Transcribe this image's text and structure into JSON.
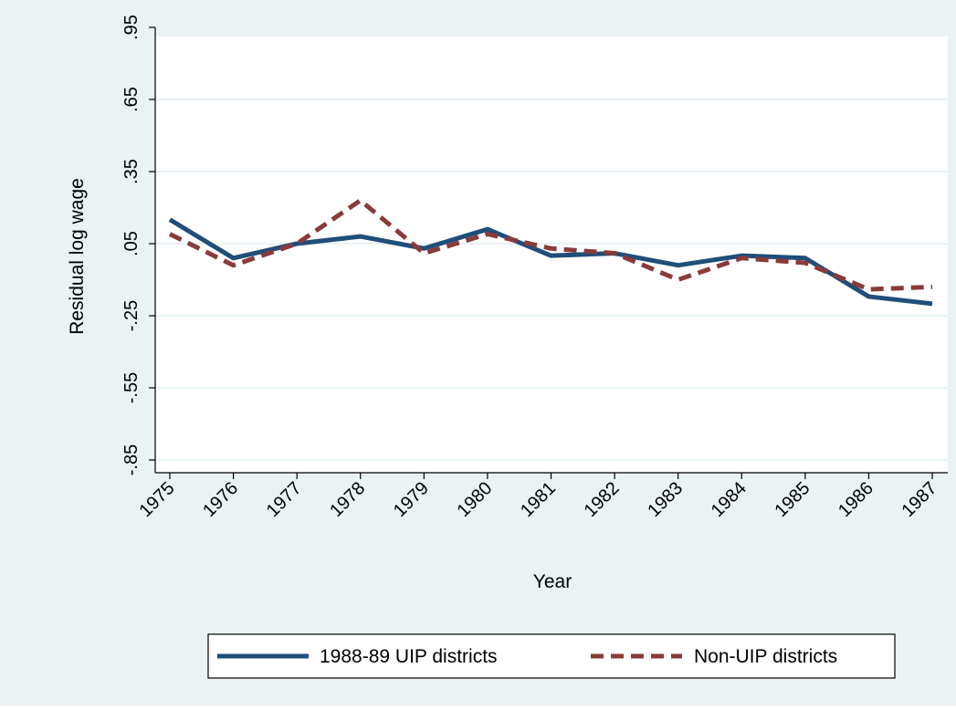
{
  "chart_data": {
    "type": "line",
    "title": "",
    "xlabel": "Year",
    "ylabel": "Residual log wage",
    "categories": [
      "1975",
      "1976",
      "1977",
      "1978",
      "1979",
      "1980",
      "1981",
      "1982",
      "1983",
      "1984",
      "1985",
      "1986",
      "1987"
    ],
    "yticks": [
      ".95",
      ".65",
      ".35",
      ".05",
      "-.25",
      "-.55",
      "-.85"
    ],
    "ytick_values": [
      0.95,
      0.65,
      0.35,
      0.05,
      -0.25,
      -0.55,
      -0.85
    ],
    "ylim": [
      -0.85,
      0.95
    ],
    "grid": true,
    "legend_position": "bottom",
    "series": [
      {
        "name": "1988-89 UIP districts",
        "color": "#1f4e79",
        "style": "solid",
        "values": [
          0.15,
          -0.01,
          0.05,
          0.08,
          0.03,
          0.11,
          0.0,
          0.01,
          -0.04,
          0.0,
          -0.01,
          -0.17,
          -0.2
        ]
      },
      {
        "name": "Non-UIP districts",
        "color": "#8b3a3a",
        "style": "dashed",
        "values": [
          0.09,
          -0.04,
          0.05,
          0.23,
          0.01,
          0.09,
          0.03,
          0.01,
          -0.1,
          -0.01,
          -0.03,
          -0.14,
          -0.13
        ]
      }
    ],
    "colors": {
      "outer_background": "#eaf2f3",
      "plot_background": "#ffffff",
      "grid": "#eaf2f3"
    }
  }
}
